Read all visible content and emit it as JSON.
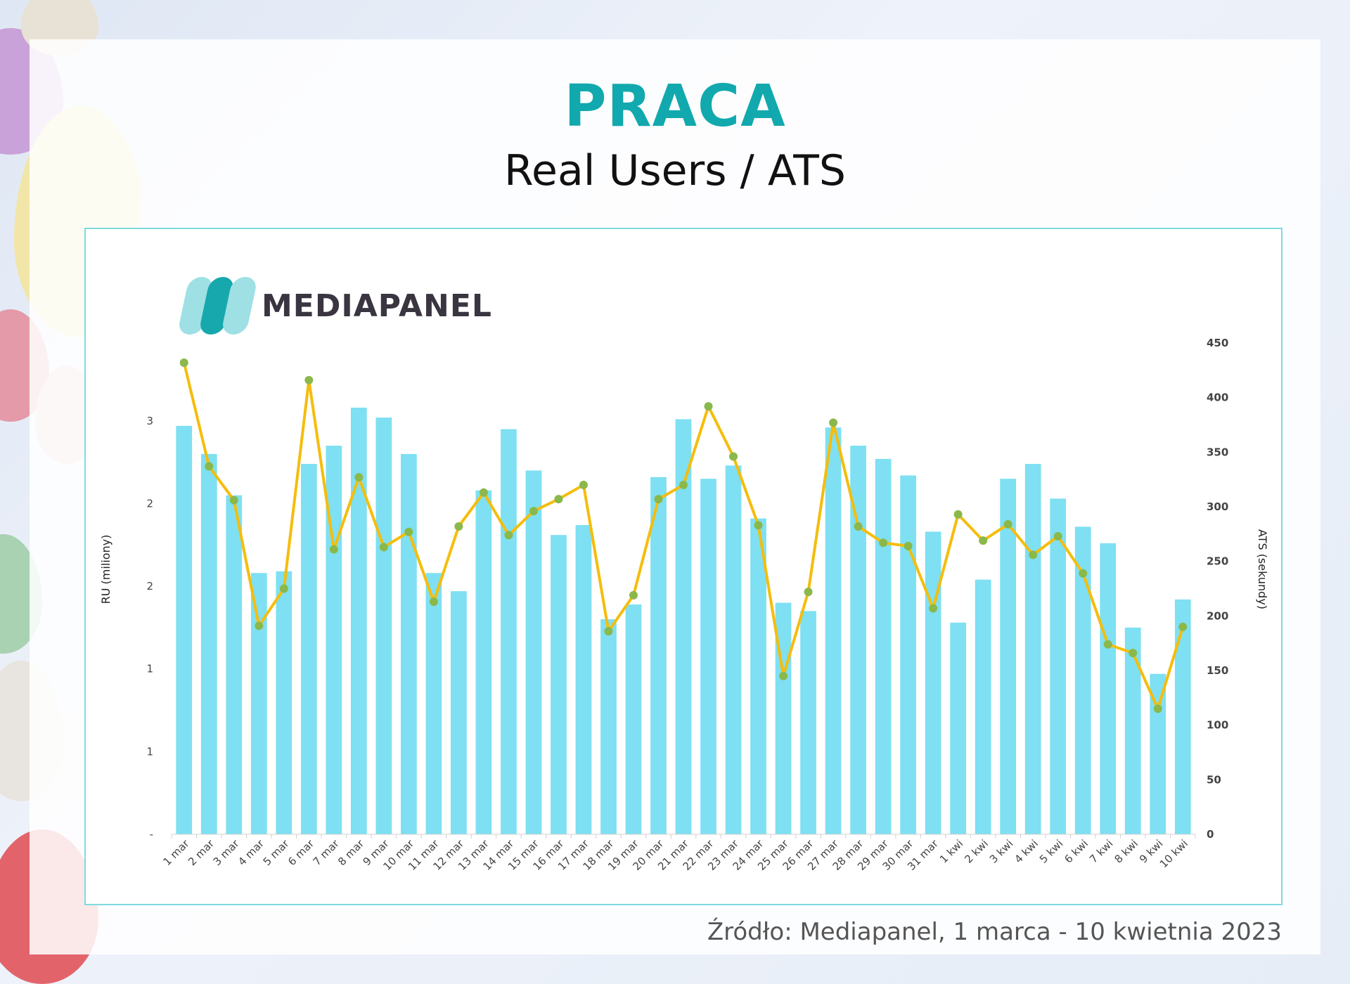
{
  "header": {
    "title": "PRACA",
    "subtitle": "Real Users / ATS"
  },
  "brand": {
    "name": "MEDIAPANEL"
  },
  "source": "Źródło: Mediapanel, 1 marca - 10 kwietnia 2023",
  "colors": {
    "title": "#11a9ad",
    "bar": "#7ee0f2",
    "line": "#f5bd0c",
    "marker": "#8bb84a",
    "frame": "#7fd9e0"
  },
  "chart_data": {
    "type": "bar",
    "categories": [
      "1 mar",
      "2 mar",
      "3 mar",
      "4 mar",
      "5 mar",
      "6 mar",
      "7 mar",
      "8 mar",
      "9 mar",
      "10 mar",
      "11 mar",
      "12 mar",
      "13 mar",
      "14 mar",
      "15 mar",
      "16 mar",
      "17 mar",
      "18 mar",
      "19 mar",
      "20 mar",
      "21 mar",
      "22 mar",
      "23 mar",
      "24 mar",
      "25 mar",
      "26 mar",
      "27 mar",
      "28 mar",
      "29 mar",
      "30 mar",
      "31 mar",
      "1 kwi",
      "2 kwi",
      "3 kwi",
      "4 kwi",
      "5 kwi",
      "6 kwi",
      "7 kwi",
      "8 kwi",
      "9 kwi",
      "10 kwi"
    ],
    "series": [
      {
        "type": "bar",
        "axis": "left",
        "values": [
          2.47,
          2.3,
          2.05,
          1.58,
          1.59,
          2.24,
          2.35,
          2.58,
          2.52,
          2.3,
          1.58,
          1.47,
          2.08,
          2.45,
          2.2,
          1.81,
          1.87,
          1.3,
          1.39,
          2.16,
          2.51,
          2.15,
          2.23,
          1.91,
          1.4,
          1.35,
          2.46,
          2.35,
          2.27,
          2.17,
          1.83,
          1.28,
          1.54,
          2.15,
          2.24,
          2.03,
          1.86,
          1.76,
          1.25,
          0.97,
          1.42
        ]
      },
      {
        "type": "line",
        "axis": "right",
        "values": [
          432,
          337,
          306,
          191,
          225,
          416,
          261,
          327,
          263,
          277,
          213,
          282,
          313,
          274,
          296,
          307,
          320,
          186,
          219,
          307,
          320,
          392,
          346,
          283,
          145,
          222,
          377,
          282,
          267,
          264,
          207,
          293,
          269,
          284,
          256,
          273,
          239,
          174,
          166,
          115,
          190
        ]
      }
    ],
    "ylabel": "RU (miliony)",
    "y2label": "ATS (sekundy)",
    "y_ticks": [
      "-",
      "1",
      "1",
      "2",
      "2",
      "3"
    ],
    "ylim": [
      0,
      2.75
    ],
    "y2_ticks": [
      "0",
      "50",
      "100",
      "150",
      "200",
      "250",
      "300",
      "350",
      "400",
      "450"
    ],
    "y2lim": [
      0,
      450
    ],
    "grid": false,
    "legend": "none"
  }
}
